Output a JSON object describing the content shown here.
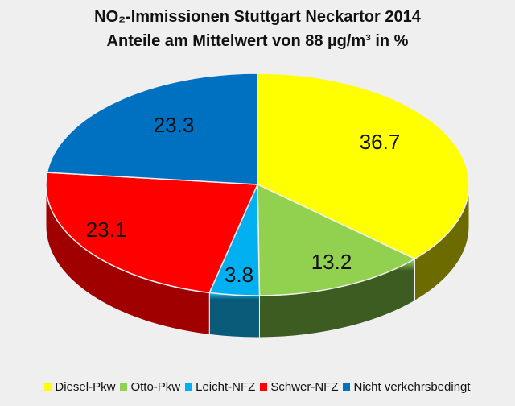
{
  "chart_data": {
    "type": "pie",
    "title": "NO₂-Immissionen Stuttgart Neckartor 2014",
    "subtitle": "Anteile am Mittelwert von 88 µg/m³  in %",
    "categories": [
      "Diesel-Pkw",
      "Otto-Pkw",
      "Leicht-NFZ",
      "Schwer-NFZ",
      "Nicht verkehrsbedingt"
    ],
    "values": [
      36.7,
      13.2,
      3.8,
      23.1,
      23.3
    ],
    "labels": [
      "36.7",
      "13.2",
      "3.8",
      "23.1",
      "23.3"
    ],
    "colors": [
      "#ffff00",
      "#92d050",
      "#00b0f0",
      "#ff0000",
      "#0070c0"
    ],
    "side_colors": [
      "#6b6b00",
      "#3d5c22",
      "#0a5a7a",
      "#a00000",
      "#0a3f70"
    ],
    "legend_position": "bottom",
    "style": "3d"
  }
}
